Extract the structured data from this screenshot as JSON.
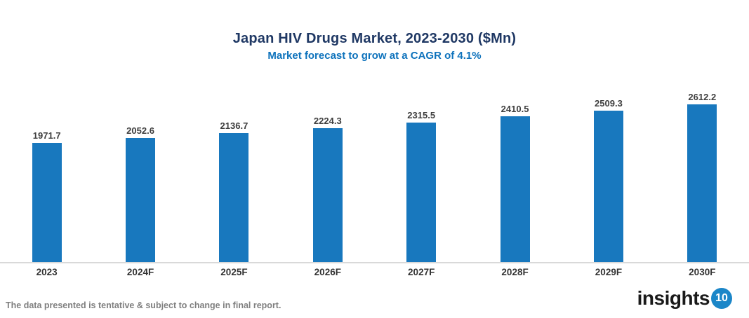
{
  "header": {
    "title": "Japan HIV Drugs Market, 2023-2030 ($Mn)",
    "subtitle": "Market forecast to grow at a CAGR of 4.1%"
  },
  "chart_data": {
    "type": "bar",
    "categories": [
      "2023",
      "2024F",
      "2025F",
      "2026F",
      "2027F",
      "2028F",
      "2029F",
      "2030F"
    ],
    "values": [
      1971.7,
      2052.6,
      2136.7,
      2224.3,
      2315.5,
      2410.5,
      2509.3,
      2612.2
    ],
    "title": "Japan HIV Drugs Market, 2023-2030 ($Mn)",
    "subtitle": "Market forecast to grow at a CAGR of 4.1%",
    "xlabel": "",
    "ylabel": "",
    "ylim": [
      0,
      2700
    ],
    "grid": false,
    "legend": false,
    "data_labels": true,
    "bar_color": "#1878be"
  },
  "footer": {
    "note": "The data presented is tentative & subject to change in final report.",
    "logo_text": "insights",
    "logo_badge": "10"
  },
  "colors": {
    "title": "#1f3864",
    "subtitle": "#0d72bc",
    "bar": "#1878be",
    "value_label": "#3f3f3f",
    "axis_line": "#d9d9d9",
    "footer_note": "#7f7f7f",
    "logo_badge_bg": "#1b86c8"
  }
}
